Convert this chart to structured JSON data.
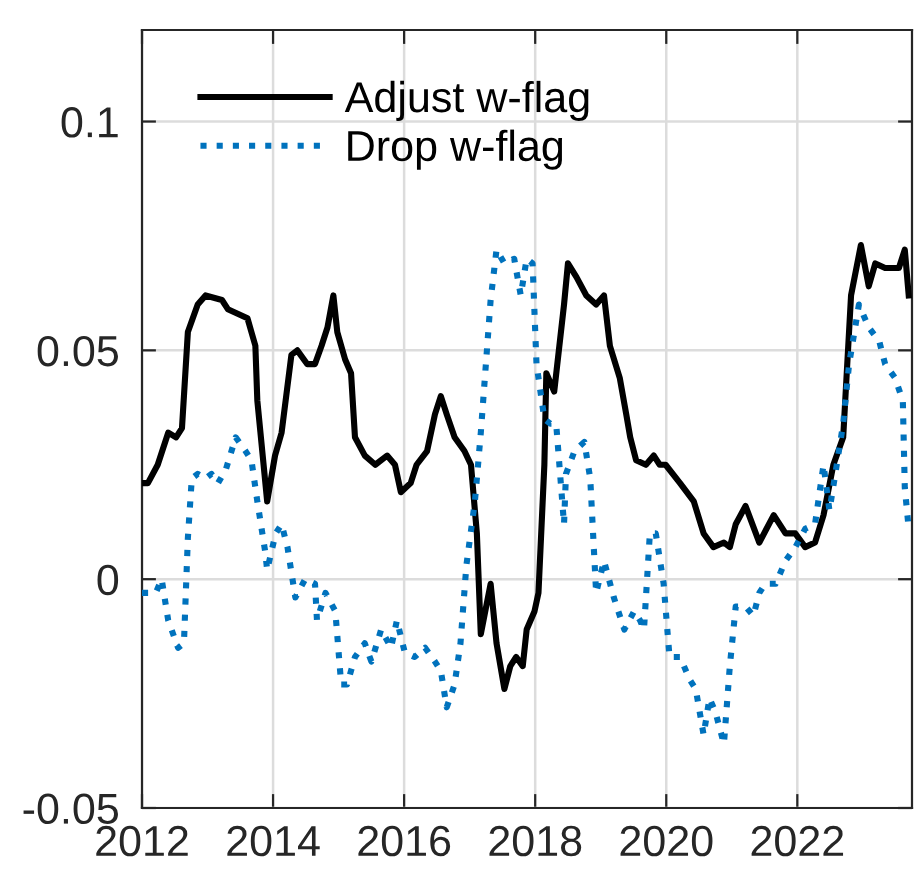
{
  "chart_data": {
    "type": "line",
    "xlim": [
      2012,
      2023.75
    ],
    "xticks": [
      2012,
      2014,
      2016,
      2018,
      2020,
      2022
    ],
    "ylim": [
      -0.05,
      0.12
    ],
    "yticks": [
      -0.05,
      0,
      0.05,
      0.1
    ],
    "grid": true,
    "legend": "top left",
    "series": [
      {
        "name": "Adjust w-flag",
        "color": "#000000",
        "line_style": "solid",
        "x": [
          2012.03,
          2012.09,
          2012.24,
          2012.4,
          2012.52,
          2012.61,
          2012.7,
          2012.85,
          2012.97,
          2013.22,
          2013.31,
          2013.46,
          2013.61,
          2013.73,
          2013.76,
          2013.91,
          2014.03,
          2014.13,
          2014.28,
          2014.37,
          2014.52,
          2014.64,
          2014.74,
          2014.83,
          2014.92,
          2014.98,
          2015.1,
          2015.19,
          2015.25,
          2015.4,
          2015.56,
          2015.74,
          2015.86,
          2015.95,
          2016.1,
          2016.19,
          2016.35,
          2016.47,
          2016.56,
          2016.65,
          2016.77,
          2016.92,
          2017.02,
          2017.11,
          2017.17,
          2017.32,
          2017.41,
          2017.53,
          2017.62,
          2017.71,
          2017.81,
          2017.87,
          2017.99,
          2018.05,
          2018.14,
          2018.17,
          2018.29,
          2018.44,
          2018.5,
          2018.63,
          2018.78,
          2018.93,
          2019.05,
          2019.14,
          2019.29,
          2019.39,
          2019.45,
          2019.54,
          2019.69,
          2019.81,
          2019.9,
          2019.99,
          2020.21,
          2020.42,
          2020.57,
          2020.72,
          2020.88,
          2020.97,
          2021.06,
          2021.21,
          2021.42,
          2021.64,
          2021.82,
          2021.97,
          2022.12,
          2022.27,
          2022.4,
          2022.55,
          2022.7,
          2022.82,
          2022.97,
          2023.09,
          2023.19,
          2023.34,
          2023.55,
          2023.64,
          2023.7
        ],
        "values": [
          0.021,
          0.021,
          0.025,
          0.032,
          0.031,
          0.033,
          0.054,
          0.06,
          0.062,
          0.061,
          0.059,
          0.058,
          0.057,
          0.051,
          0.039,
          0.017,
          0.027,
          0.032,
          0.049,
          0.05,
          0.047,
          0.047,
          0.051,
          0.055,
          0.062,
          0.054,
          0.048,
          0.045,
          0.031,
          0.027,
          0.025,
          0.027,
          0.025,
          0.019,
          0.021,
          0.025,
          0.028,
          0.036,
          0.04,
          0.036,
          0.031,
          0.028,
          0.025,
          0.01,
          -0.012,
          -0.001,
          -0.014,
          -0.024,
          -0.019,
          -0.017,
          -0.019,
          -0.011,
          -0.007,
          -0.003,
          0.025,
          0.045,
          0.041,
          0.06,
          0.069,
          0.066,
          0.062,
          0.06,
          0.062,
          0.051,
          0.044,
          0.036,
          0.031,
          0.026,
          0.025,
          0.027,
          0.025,
          0.025,
          0.021,
          0.017,
          0.01,
          0.007,
          0.008,
          0.007,
          0.012,
          0.016,
          0.008,
          0.014,
          0.01,
          0.01,
          0.007,
          0.008,
          0.014,
          0.025,
          0.031,
          0.062,
          0.073,
          0.064,
          0.069,
          0.068,
          0.068,
          0.072,
          0.062
        ]
      },
      {
        "name": "Drop w-flag",
        "color": "#0072bd",
        "line_style": "dotted",
        "x": [
          2012.0,
          2012.21,
          2012.3,
          2012.4,
          2012.55,
          2012.64,
          2012.7,
          2012.76,
          2012.85,
          2012.97,
          2013.06,
          2013.16,
          2013.28,
          2013.43,
          2013.58,
          2013.67,
          2013.76,
          2013.88,
          2013.91,
          2014.04,
          2014.13,
          2014.22,
          2014.34,
          2014.49,
          2014.64,
          2014.67,
          2014.8,
          2014.95,
          2015.04,
          2015.13,
          2015.25,
          2015.4,
          2015.5,
          2015.65,
          2015.8,
          2015.89,
          2016.01,
          2016.16,
          2016.32,
          2016.47,
          2016.56,
          2016.65,
          2016.77,
          2016.86,
          2016.95,
          2017.08,
          2017.17,
          2017.32,
          2017.41,
          2017.53,
          2017.68,
          2017.78,
          2017.87,
          2017.96,
          2018.02,
          2018.14,
          2018.23,
          2018.32,
          2018.44,
          2018.47,
          2018.6,
          2018.75,
          2018.84,
          2018.93,
          2019.05,
          2019.2,
          2019.36,
          2019.51,
          2019.6,
          2019.66,
          2019.75,
          2019.84,
          2019.96,
          2020.05,
          2020.21,
          2020.36,
          2020.45,
          2020.57,
          2020.66,
          2020.75,
          2020.88,
          2020.97,
          2021.06,
          2021.21,
          2021.33,
          2021.42,
          2021.51,
          2021.67,
          2021.82,
          2021.97,
          2022.12,
          2022.27,
          2022.4,
          2022.49,
          2022.58,
          2022.7,
          2022.79,
          2022.94,
          2023.09,
          2023.25,
          2023.34,
          2023.49,
          2023.61,
          2023.64,
          2023.7
        ],
        "values": [
          -0.003,
          -0.003,
          0.0,
          -0.009,
          -0.015,
          -0.014,
          0.009,
          0.022,
          0.023,
          0.022,
          0.023,
          0.021,
          0.024,
          0.031,
          0.028,
          0.026,
          0.017,
          0.006,
          0.002,
          0.01,
          0.012,
          0.007,
          -0.004,
          0.0,
          -0.001,
          -0.009,
          -0.003,
          -0.007,
          -0.023,
          -0.023,
          -0.017,
          -0.014,
          -0.018,
          -0.011,
          -0.015,
          -0.009,
          -0.016,
          -0.017,
          -0.015,
          -0.018,
          -0.02,
          -0.028,
          -0.023,
          -0.014,
          0.003,
          0.017,
          0.032,
          0.061,
          0.072,
          0.069,
          0.07,
          0.062,
          0.07,
          0.069,
          0.047,
          0.035,
          0.034,
          0.034,
          0.012,
          0.023,
          0.028,
          0.03,
          0.022,
          -0.003,
          0.004,
          -0.004,
          -0.011,
          -0.007,
          -0.009,
          -0.011,
          0.01,
          0.01,
          -0.001,
          -0.017,
          -0.017,
          -0.022,
          -0.024,
          -0.034,
          -0.026,
          -0.029,
          -0.036,
          -0.019,
          -0.006,
          -0.006,
          -0.008,
          -0.003,
          -0.001,
          -0.001,
          0.004,
          0.007,
          0.011,
          0.012,
          0.025,
          0.015,
          0.023,
          0.034,
          0.047,
          0.06,
          0.055,
          0.052,
          0.047,
          0.044,
          0.039,
          0.02,
          0.011
        ]
      }
    ]
  }
}
